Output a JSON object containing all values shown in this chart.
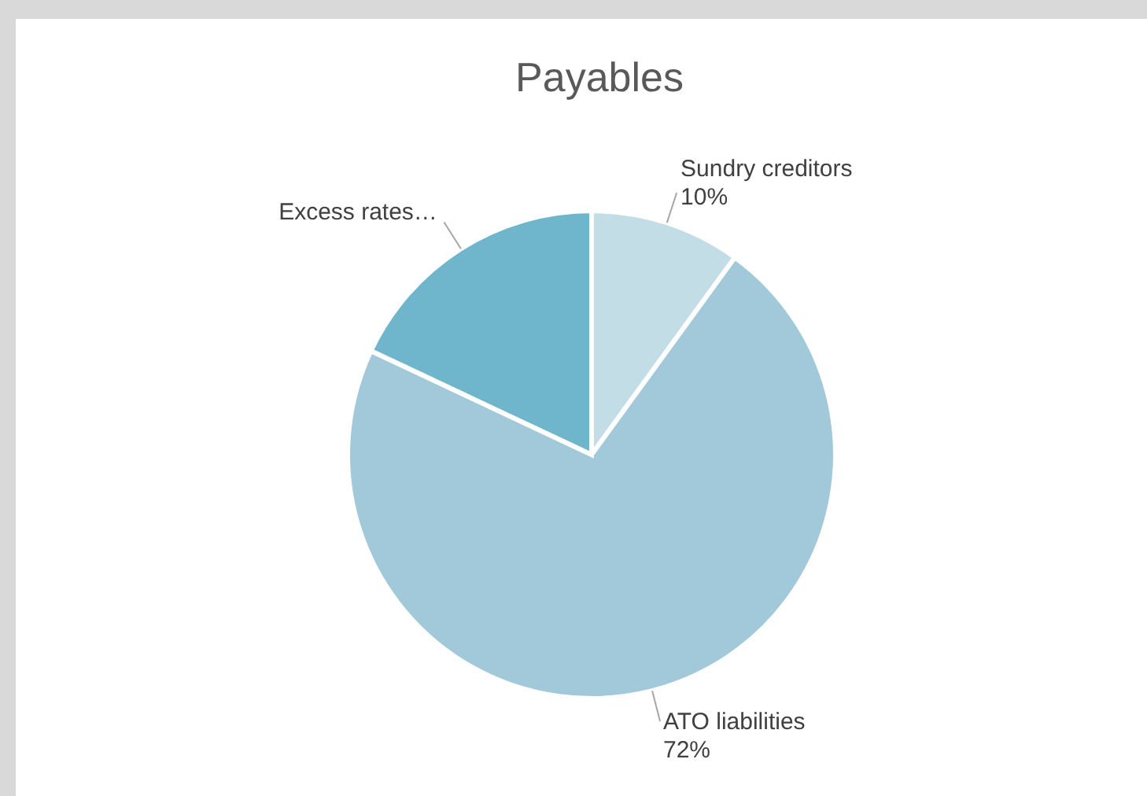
{
  "chart_data": {
    "type": "pie",
    "title": "Payables",
    "categories": [
      "Sundry creditors",
      "ATO liabilities",
      "Excess rates…"
    ],
    "values": [
      10,
      72,
      18
    ],
    "colors": [
      "#c2dde5",
      "#a2c9d9",
      "#6fb6cd"
    ],
    "value_labels": [
      "10%",
      "72%",
      null
    ]
  }
}
